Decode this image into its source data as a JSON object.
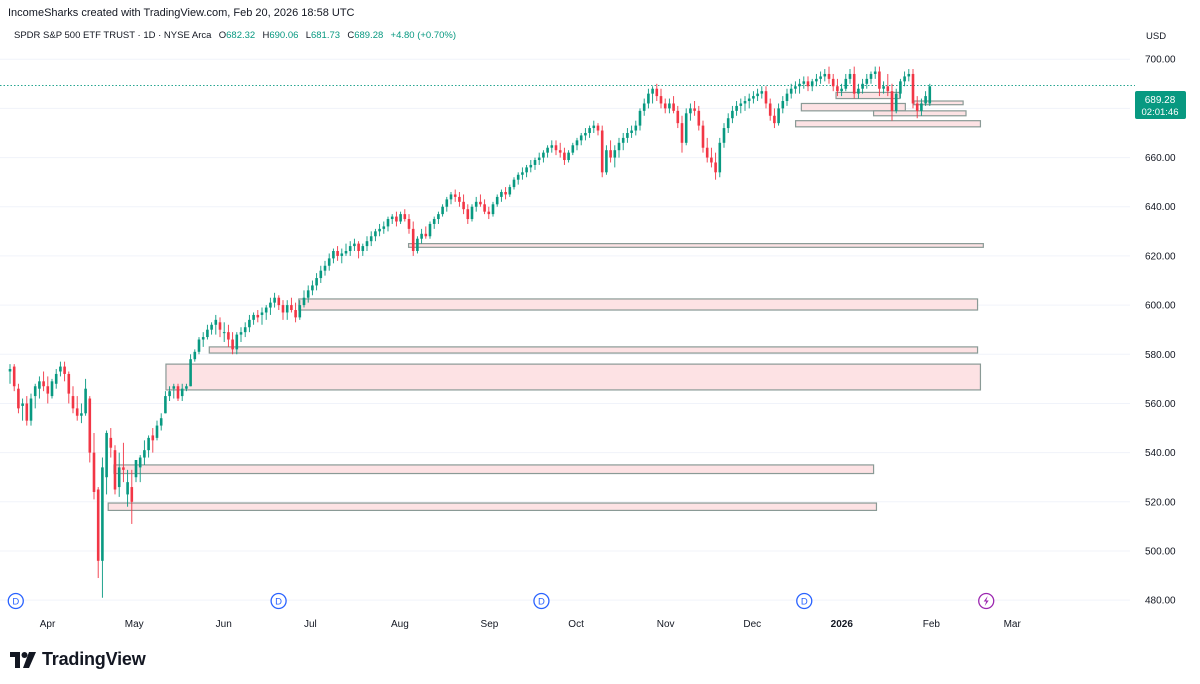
{
  "header": {
    "caption": "IncomeSharks created with TradingView.com, Feb 20, 2026 18:58 UTC",
    "symbol": "SPDR S&P 500 ETF TRUST · 1D · NYSE Arca",
    "ohlc": [
      {
        "label": "O",
        "value": "682.32"
      },
      {
        "label": "H",
        "value": "690.06"
      },
      {
        "label": "L",
        "value": "681.73"
      },
      {
        "label": "C",
        "value": "689.28"
      }
    ],
    "change": "+4.80 (+0.70%)",
    "currency": "USD"
  },
  "price_badge": {
    "price": "689.28",
    "countdown": "02:01:46"
  },
  "logo": {
    "text": "TradingView"
  },
  "colors": {
    "up": "#089981",
    "down": "#f23645",
    "zone_fill": "#fde2e4",
    "zone_stroke": "#8a9a96",
    "badge": "#089981"
  },
  "chart_data": {
    "type": "candlestick",
    "y_ticks": [
      480,
      500,
      520,
      540,
      560,
      580,
      600,
      620,
      640,
      660,
      680,
      700
    ],
    "ylim": [
      476,
      707
    ],
    "x_labels": [
      {
        "label": "Apr",
        "date": "2025-04-01"
      },
      {
        "label": "May",
        "date": "2025-05-01"
      },
      {
        "label": "Jun",
        "date": "2025-06-01"
      },
      {
        "label": "Jul",
        "date": "2025-07-01"
      },
      {
        "label": "Aug",
        "date": "2025-08-01"
      },
      {
        "label": "Sep",
        "date": "2025-09-01"
      },
      {
        "label": "Oct",
        "date": "2025-10-01"
      },
      {
        "label": "Nov",
        "date": "2025-11-01"
      },
      {
        "label": "Dec",
        "date": "2025-12-01"
      },
      {
        "label": "2026",
        "date": "2026-01-01",
        "bold": true
      },
      {
        "label": "Feb",
        "date": "2026-02-01"
      },
      {
        "label": "Mar",
        "date": "2026-03-01"
      }
    ],
    "last_price": 689.28,
    "dividend_markers": [
      {
        "label": "D",
        "date": "2025-03-21"
      },
      {
        "label": "D",
        "date": "2025-06-20"
      },
      {
        "label": "D",
        "date": "2025-09-19"
      },
      {
        "label": "D",
        "date": "2025-12-19"
      }
    ],
    "event_marker": {
      "date": "2026-02-20"
    },
    "zones": [
      {
        "start": "2025-04-22",
        "end": "2026-01-13",
        "low": 516.5,
        "high": 519.5
      },
      {
        "start": "2025-04-24",
        "end": "2026-01-12",
        "low": 531.5,
        "high": 535.0
      },
      {
        "start": "2025-05-12",
        "end": "2026-02-18",
        "low": 565.5,
        "high": 576.0
      },
      {
        "start": "2025-05-27",
        "end": "2026-02-17",
        "low": 580.5,
        "high": 583.0
      },
      {
        "start": "2025-06-27",
        "end": "2026-02-17",
        "low": 598.0,
        "high": 602.5
      },
      {
        "start": "2025-08-04",
        "end": "2026-02-19",
        "low": 623.5,
        "high": 625.0
      },
      {
        "start": "2025-12-16",
        "end": "2026-02-18",
        "low": 672.5,
        "high": 675.0
      },
      {
        "start": "2025-12-18",
        "end": "2026-01-23",
        "low": 679.0,
        "high": 682.0
      },
      {
        "start": "2025-12-30",
        "end": "2026-01-21",
        "low": 684.0,
        "high": 686.5
      },
      {
        "start": "2026-01-12",
        "end": "2026-02-13",
        "low": 677.0,
        "high": 679.0
      },
      {
        "start": "2026-01-26",
        "end": "2026-02-12",
        "low": 681.5,
        "high": 683.0
      }
    ],
    "candles": [
      [
        573,
        576,
        568,
        574
      ],
      [
        575,
        576,
        565,
        567
      ],
      [
        566,
        568,
        556,
        558
      ],
      [
        559,
        562,
        553,
        560
      ],
      [
        560,
        563,
        551,
        553
      ],
      [
        553,
        564,
        551,
        562
      ],
      [
        563,
        568,
        558,
        567
      ],
      [
        566,
        571,
        562,
        569
      ],
      [
        569,
        573,
        565,
        567
      ],
      [
        567,
        571,
        560,
        564
      ],
      [
        563,
        570,
        562,
        569
      ],
      [
        568,
        574,
        566,
        572
      ],
      [
        573,
        577,
        571,
        575
      ],
      [
        575,
        577,
        569,
        572
      ],
      [
        572,
        573,
        560,
        564
      ],
      [
        563,
        567,
        556,
        558
      ],
      [
        558,
        563,
        553,
        555
      ],
      [
        555,
        560,
        552,
        556
      ],
      [
        556,
        570,
        555,
        566
      ],
      [
        562,
        563,
        536,
        540
      ],
      [
        540,
        548,
        521,
        524
      ],
      [
        525,
        526,
        489,
        496
      ],
      [
        496,
        538,
        481,
        534
      ],
      [
        530,
        549,
        523,
        548
      ],
      [
        546,
        550,
        538,
        542
      ],
      [
        541,
        543,
        523,
        525
      ],
      [
        526,
        540,
        522,
        534
      ],
      [
        534,
        544,
        528,
        533
      ],
      [
        523,
        533,
        518,
        528
      ],
      [
        526,
        533,
        511,
        520
      ],
      [
        530,
        537,
        528,
        537
      ],
      [
        534,
        539,
        528,
        538
      ],
      [
        538,
        545,
        535,
        541
      ],
      [
        541,
        547,
        538,
        546
      ],
      [
        547,
        550,
        540,
        545
      ],
      [
        546,
        553,
        545,
        551
      ],
      [
        551,
        556,
        549,
        554
      ],
      [
        556,
        565,
        556,
        563
      ],
      [
        563,
        567,
        561,
        565
      ],
      [
        566,
        568,
        562,
        567
      ],
      [
        567,
        568,
        561,
        562
      ],
      [
        563,
        568,
        561,
        566
      ],
      [
        566,
        568,
        565,
        567
      ],
      [
        567,
        580,
        567,
        578
      ],
      [
        578,
        582,
        577,
        581
      ],
      [
        581,
        587,
        580,
        586
      ],
      [
        586,
        589,
        583,
        587
      ],
      [
        587,
        592,
        586,
        590
      ],
      [
        590,
        593,
        588,
        592
      ],
      [
        592,
        596,
        588,
        594
      ],
      [
        593,
        595,
        587,
        590
      ],
      [
        589,
        593,
        585,
        589
      ],
      [
        589,
        592,
        583,
        586
      ],
      [
        586,
        589,
        580,
        582
      ],
      [
        582,
        589,
        580,
        588
      ],
      [
        588,
        591,
        585,
        589
      ],
      [
        589,
        593,
        587,
        591
      ],
      [
        591,
        596,
        589,
        594
      ],
      [
        594,
        597,
        592,
        596
      ],
      [
        596,
        598,
        593,
        595
      ],
      [
        596,
        599,
        592,
        597
      ],
      [
        597,
        600,
        594,
        599
      ],
      [
        599,
        603,
        596,
        601
      ],
      [
        601,
        605,
        599,
        603
      ],
      [
        603,
        604,
        598,
        600
      ],
      [
        600,
        602,
        594,
        597
      ],
      [
        597,
        602,
        594,
        600
      ],
      [
        600,
        603,
        597,
        598
      ],
      [
        598,
        601,
        593,
        595
      ],
      [
        595,
        602,
        594,
        600
      ],
      [
        600,
        606,
        599,
        603
      ],
      [
        603,
        608,
        601,
        606
      ],
      [
        606,
        610,
        604,
        608
      ],
      [
        608,
        613,
        606,
        611
      ],
      [
        611,
        616,
        609,
        614
      ],
      [
        614,
        618,
        612,
        616
      ],
      [
        616,
        621,
        614,
        619
      ],
      [
        619,
        623,
        617,
        622
      ],
      [
        622,
        624,
        618,
        620
      ],
      [
        620,
        623,
        617,
        621
      ],
      [
        621,
        625,
        620,
        622
      ],
      [
        622,
        626,
        620,
        624
      ],
      [
        624,
        627,
        622,
        625
      ],
      [
        625,
        626,
        619,
        622
      ],
      [
        622,
        625,
        620,
        624
      ],
      [
        624,
        628,
        622,
        626
      ],
      [
        626,
        630,
        624,
        628
      ],
      [
        628,
        631,
        626,
        630
      ],
      [
        630,
        633,
        628,
        631
      ],
      [
        631,
        634,
        629,
        632
      ],
      [
        632,
        636,
        630,
        635
      ],
      [
        635,
        637,
        633,
        636
      ],
      [
        636,
        638,
        632,
        634
      ],
      [
        634,
        638,
        633,
        637
      ],
      [
        637,
        639,
        634,
        635
      ],
      [
        635,
        637,
        629,
        631
      ],
      [
        631,
        634,
        620,
        622
      ],
      [
        622,
        628,
        621,
        627
      ],
      [
        627,
        631,
        625,
        629
      ],
      [
        629,
        632,
        627,
        628
      ],
      [
        628,
        634,
        627,
        633
      ],
      [
        633,
        636,
        631,
        635
      ],
      [
        635,
        638,
        633,
        637
      ],
      [
        637,
        641,
        636,
        640
      ],
      [
        640,
        644,
        638,
        643
      ],
      [
        643,
        646,
        641,
        645
      ],
      [
        645,
        647,
        642,
        644
      ],
      [
        644,
        646,
        640,
        642
      ],
      [
        642,
        645,
        637,
        639
      ],
      [
        639,
        641,
        633,
        635
      ],
      [
        635,
        641,
        634,
        640
      ],
      [
        640,
        644,
        638,
        642
      ],
      [
        642,
        645,
        640,
        641
      ],
      [
        641,
        643,
        637,
        638
      ],
      [
        638,
        640,
        635,
        637
      ],
      [
        637,
        642,
        636,
        641
      ],
      [
        641,
        645,
        640,
        644
      ],
      [
        644,
        647,
        642,
        646
      ],
      [
        646,
        648,
        643,
        645
      ],
      [
        645,
        649,
        644,
        648
      ],
      [
        648,
        652,
        647,
        651
      ],
      [
        651,
        654,
        649,
        653
      ],
      [
        653,
        656,
        651,
        654
      ],
      [
        654,
        657,
        652,
        656
      ],
      [
        656,
        659,
        654,
        657
      ],
      [
        657,
        660,
        655,
        659
      ],
      [
        659,
        662,
        657,
        660
      ],
      [
        660,
        663,
        658,
        662
      ],
      [
        662,
        665,
        660,
        664
      ],
      [
        664,
        667,
        662,
        665
      ],
      [
        665,
        667,
        661,
        663
      ],
      [
        663,
        666,
        660,
        662
      ],
      [
        662,
        664,
        657,
        659
      ],
      [
        659,
        663,
        658,
        662
      ],
      [
        662,
        666,
        661,
        665
      ],
      [
        665,
        668,
        663,
        667
      ],
      [
        667,
        670,
        665,
        669
      ],
      [
        669,
        672,
        667,
        670
      ],
      [
        670,
        673,
        668,
        672
      ],
      [
        672,
        675,
        670,
        673
      ],
      [
        673,
        674,
        669,
        671
      ],
      [
        671,
        673,
        652,
        654
      ],
      [
        654,
        665,
        653,
        663
      ],
      [
        663,
        667,
        658,
        660
      ],
      [
        660,
        665,
        656,
        663
      ],
      [
        663,
        668,
        660,
        666
      ],
      [
        666,
        670,
        663,
        668
      ],
      [
        668,
        672,
        666,
        670
      ],
      [
        670,
        673,
        668,
        671
      ],
      [
        671,
        675,
        669,
        673
      ],
      [
        673,
        680,
        671,
        679
      ],
      [
        679,
        684,
        677,
        682
      ],
      [
        682,
        688,
        680,
        686
      ],
      [
        686,
        689,
        682,
        688
      ],
      [
        688,
        690,
        683,
        685
      ],
      [
        685,
        688,
        680,
        682
      ],
      [
        682,
        684,
        678,
        680
      ],
      [
        680,
        684,
        678,
        682
      ],
      [
        682,
        685,
        678,
        679
      ],
      [
        679,
        681,
        672,
        674
      ],
      [
        674,
        677,
        662,
        666
      ],
      [
        666,
        680,
        665,
        678
      ],
      [
        678,
        682,
        675,
        680
      ],
      [
        680,
        683,
        677,
        679
      ],
      [
        679,
        681,
        671,
        673
      ],
      [
        673,
        675,
        662,
        664
      ],
      [
        664,
        668,
        658,
        660
      ],
      [
        660,
        664,
        656,
        658
      ],
      [
        658,
        662,
        651,
        654
      ],
      [
        654,
        668,
        652,
        666
      ],
      [
        666,
        674,
        664,
        672
      ],
      [
        672,
        678,
        670,
        676
      ],
      [
        676,
        681,
        674,
        679
      ],
      [
        679,
        683,
        677,
        681
      ],
      [
        681,
        684,
        678,
        682
      ],
      [
        682,
        685,
        679,
        683
      ],
      [
        683,
        686,
        680,
        684
      ],
      [
        684,
        687,
        682,
        685
      ],
      [
        685,
        688,
        683,
        686
      ],
      [
        686,
        689,
        684,
        687
      ],
      [
        687,
        689,
        680,
        682
      ],
      [
        682,
        684,
        675,
        677
      ],
      [
        677,
        680,
        672,
        674
      ],
      [
        674,
        682,
        673,
        680
      ],
      [
        680,
        685,
        678,
        683
      ],
      [
        683,
        688,
        681,
        686
      ],
      [
        686,
        690,
        684,
        688
      ],
      [
        688,
        691,
        686,
        689
      ],
      [
        689,
        692,
        686,
        690
      ],
      [
        690,
        693,
        688,
        691
      ],
      [
        691,
        693,
        687,
        689
      ],
      [
        689,
        692,
        687,
        691
      ],
      [
        691,
        694,
        689,
        692
      ],
      [
        692,
        695,
        690,
        693
      ],
      [
        693,
        696,
        691,
        694
      ],
      [
        694,
        697,
        690,
        692
      ],
      [
        692,
        694,
        687,
        689
      ],
      [
        689,
        692,
        685,
        687
      ],
      [
        687,
        690,
        685,
        688
      ],
      [
        688,
        694,
        687,
        692
      ],
      [
        692,
        696,
        690,
        694
      ],
      [
        694,
        697,
        684,
        686
      ],
      [
        686,
        690,
        684,
        688
      ],
      [
        688,
        692,
        686,
        690
      ],
      [
        690,
        694,
        688,
        692
      ],
      [
        692,
        695,
        690,
        694
      ],
      [
        694,
        697,
        692,
        695
      ],
      [
        695,
        697,
        685,
        688
      ],
      [
        688,
        691,
        686,
        689
      ],
      [
        689,
        694,
        685,
        687
      ],
      [
        687,
        690,
        675,
        679
      ],
      [
        679,
        688,
        678,
        686
      ],
      [
        686,
        692,
        684,
        691
      ],
      [
        691,
        695,
        689,
        693
      ],
      [
        693,
        696,
        691,
        694
      ],
      [
        694,
        696,
        680,
        682
      ],
      [
        682,
        685,
        676,
        679
      ],
      [
        679,
        684,
        677,
        682
      ],
      [
        682,
        687,
        681,
        685
      ],
      [
        682,
        690,
        681,
        689
      ]
    ]
  }
}
